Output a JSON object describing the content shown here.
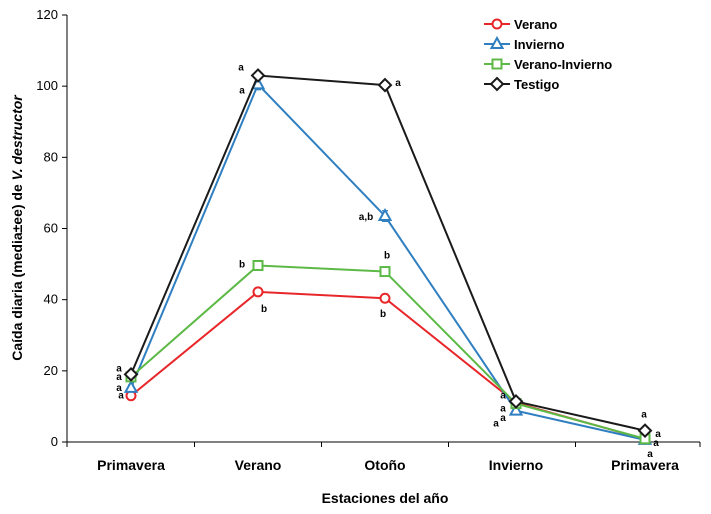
{
  "chart_data": {
    "type": "line",
    "title": "",
    "xlabel": "Estaciones del año",
    "ylabel_prefix": "Caída diaria (media±ee) de ",
    "ylabel_species": "V. destructor",
    "ylim": [
      0,
      120
    ],
    "yticks": [
      0,
      20,
      40,
      60,
      80,
      100,
      120
    ],
    "categories": [
      "Primavera",
      "Verano",
      "Otoño",
      "Invierno",
      "Primavera"
    ],
    "legend_position": "top-right",
    "series": [
      {
        "name": "Verano",
        "color": "#e8262a",
        "marker": "circle",
        "values": [
          13,
          42.2,
          40.4,
          11,
          0.8
        ],
        "errors": [
          0.6,
          0.8,
          0.8,
          0.6,
          0.3
        ],
        "labels": [
          "a",
          "b",
          "b",
          "a",
          "a"
        ]
      },
      {
        "name": "Invierno",
        "color": "#2f7fc1",
        "marker": "triangle",
        "values": [
          15.2,
          100.5,
          63.5,
          8.8,
          0.6
        ],
        "errors": [
          0.8,
          1.5,
          1.5,
          0.6,
          0.3
        ],
        "labels": [
          "a",
          "a",
          "a,b",
          "a",
          "a"
        ]
      },
      {
        "name": "Verano-Invierno",
        "color": "#5cb946",
        "marker": "square",
        "values": [
          18.3,
          49.6,
          47.9,
          10.8,
          0.9
        ],
        "errors": [
          0.6,
          0.8,
          0.8,
          0.6,
          0.3
        ],
        "labels": [
          "a",
          "b",
          "b",
          "a",
          "a"
        ]
      },
      {
        "name": "Testigo",
        "color": "#1a1a1a",
        "marker": "diamond",
        "values": [
          19,
          103,
          100.3,
          11.4,
          3.2
        ],
        "errors": [
          0.6,
          0.8,
          0.8,
          0.6,
          0.3
        ],
        "labels": [
          "a",
          "a",
          "a",
          "a",
          "a"
        ]
      }
    ]
  }
}
